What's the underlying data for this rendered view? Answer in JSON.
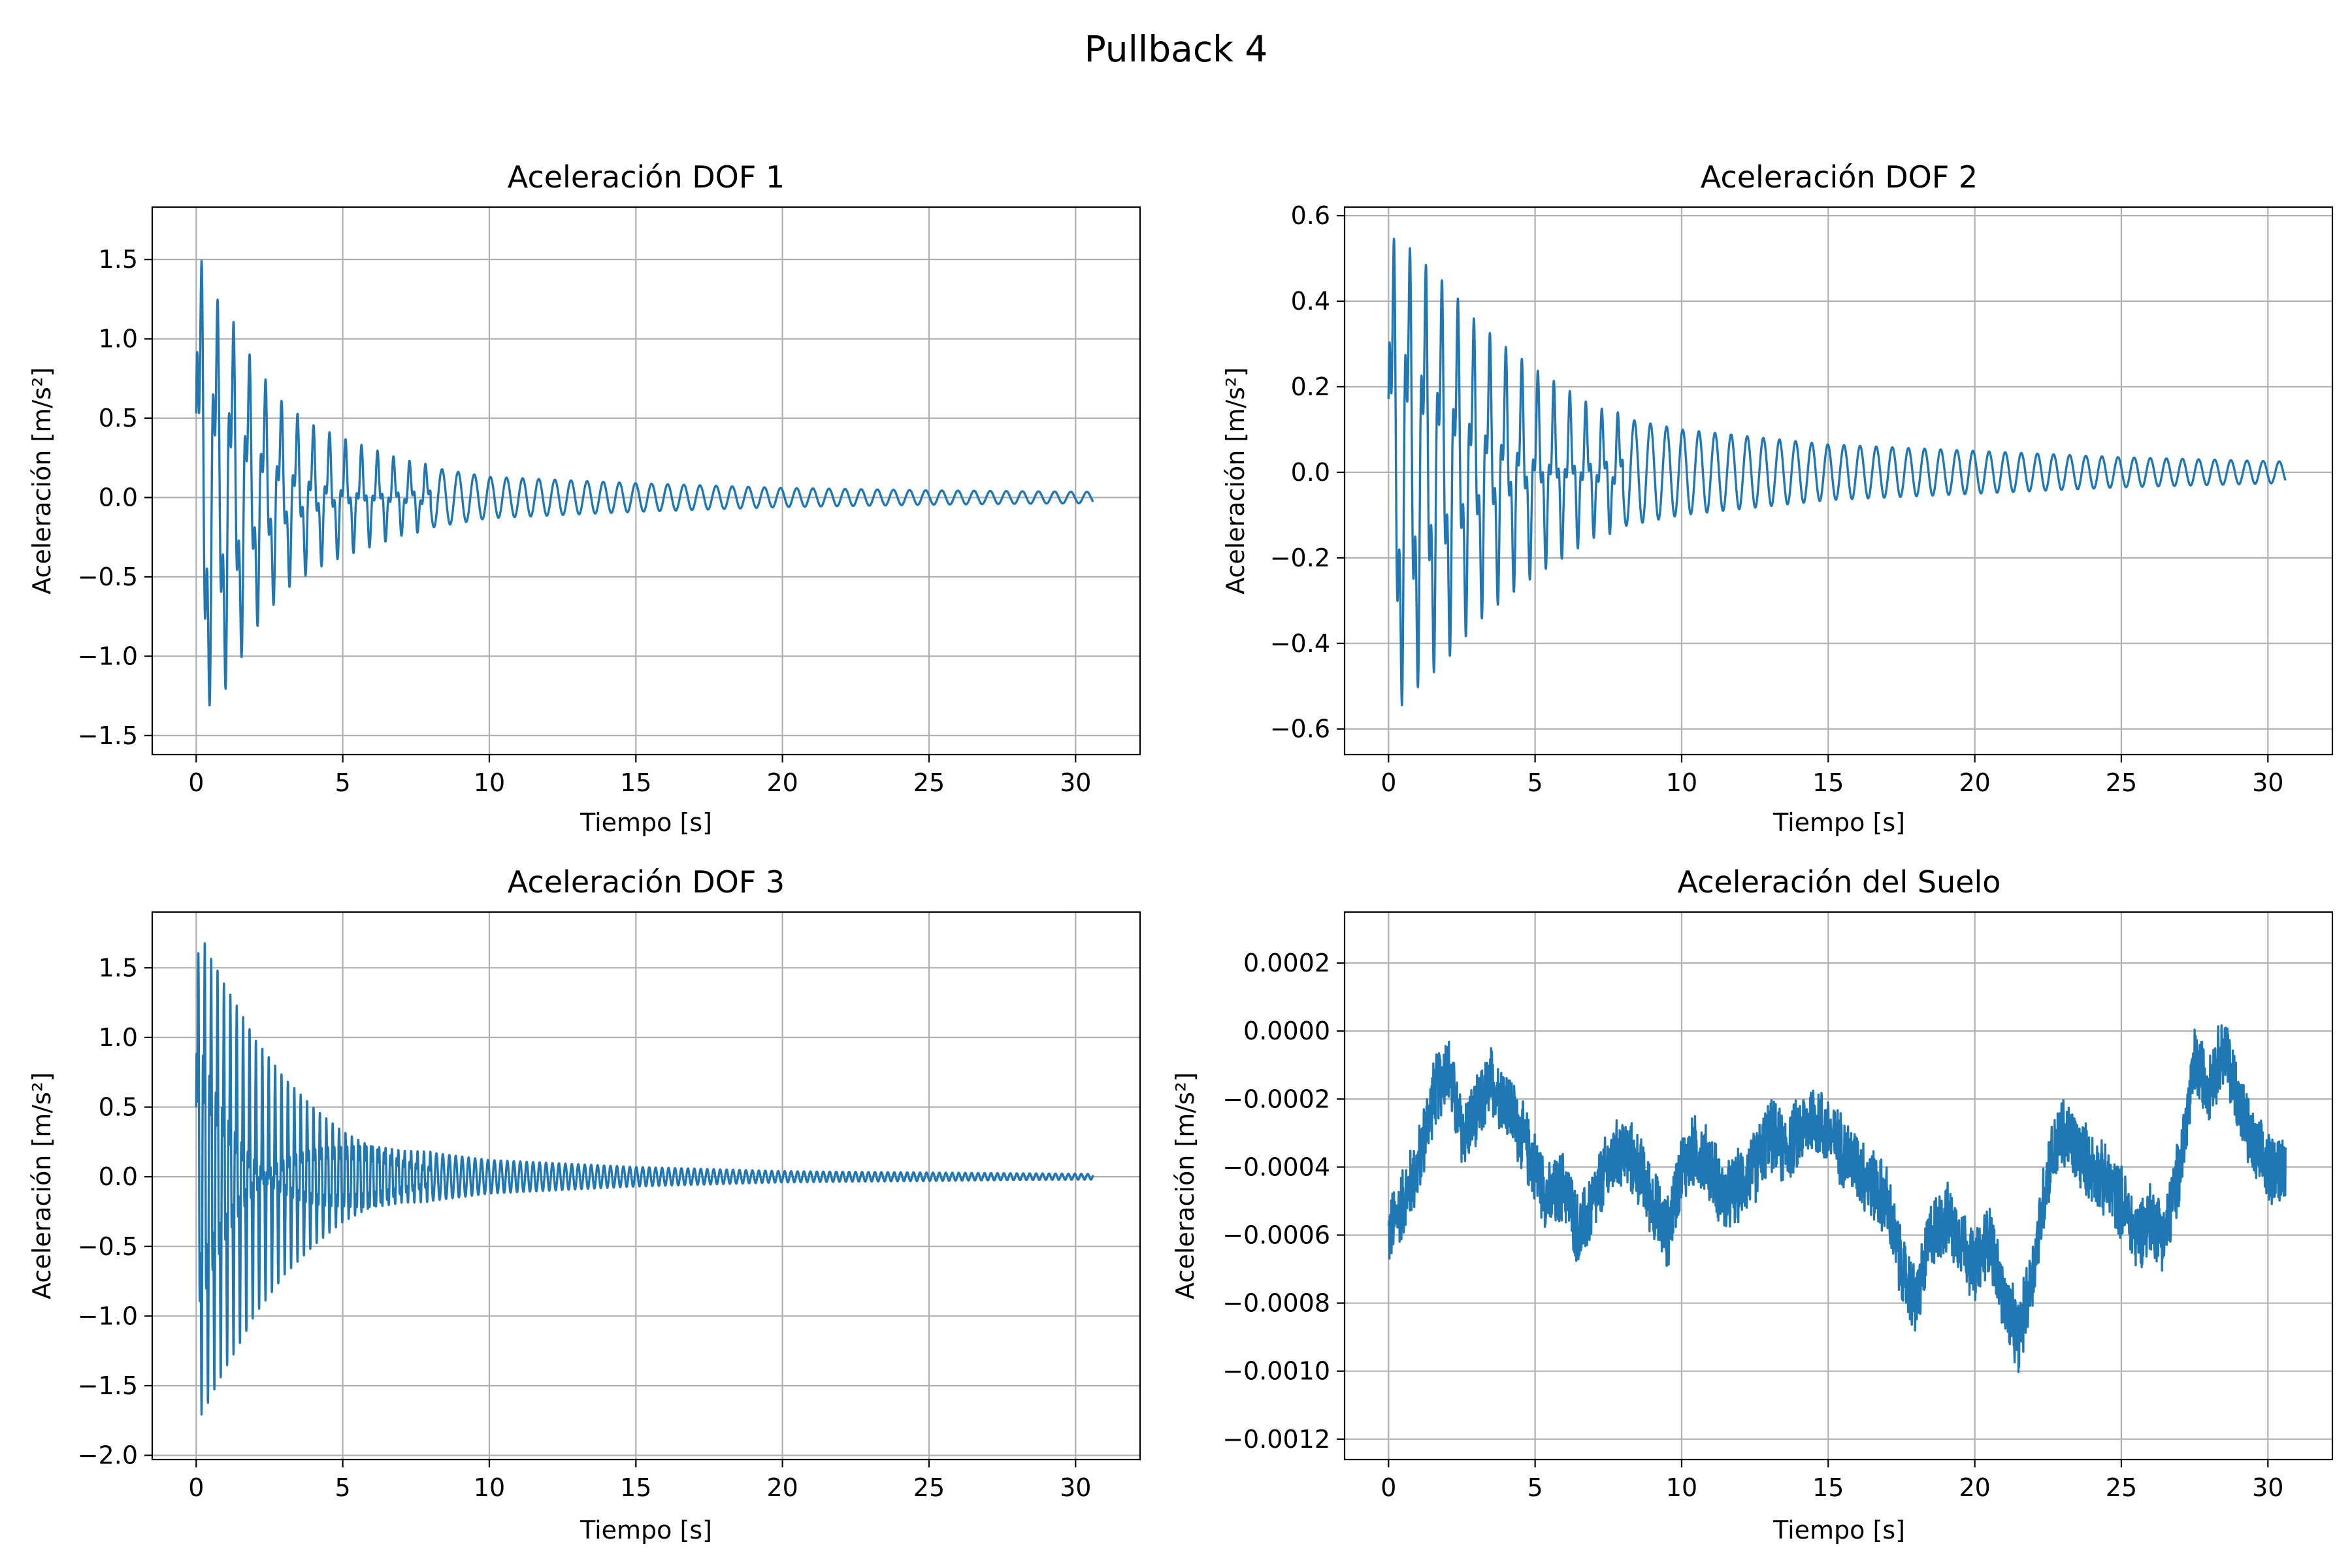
{
  "figure": {
    "suptitle": "Pullback 4",
    "line_color": "#1f77b4",
    "grid_color": "#b0b0b0"
  },
  "chart_data": [
    {
      "type": "line",
      "title": "Aceleración DOF 1",
      "xlabel": "Tiempo [s]",
      "ylabel": "Aceleración [m/s²]",
      "xlim": [
        -1.5,
        32.2
      ],
      "ylim": [
        -1.62,
        1.83
      ],
      "xticks": [
        0,
        5,
        10,
        15,
        20,
        25,
        30
      ],
      "xticklabels": [
        "0",
        "5",
        "10",
        "15",
        "20",
        "25",
        "30"
      ],
      "yticks": [
        -1.5,
        -1.0,
        -0.5,
        0.0,
        0.5,
        1.0,
        1.5
      ],
      "yticklabels": [
        "−1.5",
        "−1.0",
        "−0.5",
        "0.0",
        "0.5",
        "1.0",
        "1.5"
      ],
      "grid": true,
      "series": [
        {
          "envelope_t": [
            0,
            0.1,
            0.5,
            1,
            2,
            3,
            4,
            5,
            7,
            10,
            15,
            20,
            25,
            30.6
          ],
          "envelope_amp": [
            1.7,
            1.6,
            1.3,
            1.2,
            0.8,
            0.55,
            0.42,
            0.34,
            0.22,
            0.13,
            0.09,
            0.06,
            0.045,
            0.035
          ],
          "t_end": 30.6,
          "dominant_period_s": 0.55
        }
      ]
    },
    {
      "type": "line",
      "title": "Aceleración DOF 2",
      "xlabel": "Tiempo [s]",
      "ylabel": "Aceleración [m/s²]",
      "xlim": [
        -1.5,
        32.2
      ],
      "ylim": [
        -0.66,
        0.62
      ],
      "xticks": [
        0,
        5,
        10,
        15,
        20,
        25,
        30
      ],
      "xticklabels": [
        "0",
        "5",
        "10",
        "15",
        "20",
        "25",
        "30"
      ],
      "yticks": [
        -0.6,
        -0.4,
        -0.2,
        0.0,
        0.2,
        0.4,
        0.6
      ],
      "yticklabels": [
        "−0.6",
        "−0.4",
        "−0.2",
        "0.0",
        "0.2",
        "0.4",
        "0.6"
      ],
      "grid": true,
      "series": [
        {
          "envelope_t": [
            0,
            0.3,
            1,
            2,
            3,
            4,
            5,
            7,
            10,
            15,
            20,
            25,
            30.6
          ],
          "envelope_amp": [
            0.55,
            0.57,
            0.5,
            0.42,
            0.33,
            0.27,
            0.22,
            0.14,
            0.1,
            0.065,
            0.05,
            0.035,
            0.025
          ],
          "t_end": 30.6,
          "dominant_period_s": 0.55
        }
      ]
    },
    {
      "type": "line",
      "title": "Aceleración DOF 3",
      "xlabel": "Tiempo [s]",
      "ylabel": "Aceleración [m/s²]",
      "xlim": [
        -1.5,
        32.2
      ],
      "ylim": [
        -2.03,
        1.9
      ],
      "xticks": [
        0,
        5,
        10,
        15,
        20,
        25,
        30
      ],
      "xticklabels": [
        "0",
        "5",
        "10",
        "15",
        "20",
        "25",
        "30"
      ],
      "yticks": [
        -2.0,
        -1.5,
        -1.0,
        -0.5,
        0.0,
        0.5,
        1.0,
        1.5
      ],
      "yticklabels": [
        "−2.0",
        "−1.5",
        "−1.0",
        "−0.5",
        "0.0",
        "0.5",
        "1.0",
        "1.5"
      ],
      "grid": true,
      "series": [
        {
          "envelope_t": [
            0,
            0.2,
            0.5,
            1,
            2,
            3,
            4,
            5,
            7,
            10,
            15,
            20,
            25,
            30.6
          ],
          "envelope_amp": [
            1.6,
            1.75,
            1.55,
            1.3,
            0.9,
            0.65,
            0.48,
            0.35,
            0.2,
            0.12,
            0.07,
            0.04,
            0.03,
            0.02
          ],
          "t_end": 30.6,
          "dominant_period_s": 0.22
        }
      ]
    },
    {
      "type": "line",
      "title": "Aceleración del Suelo",
      "xlabel": "Tiempo [s]",
      "ylabel": "Aceleración [m/s²]",
      "xlim": [
        -1.5,
        32.2
      ],
      "ylim": [
        -0.00126,
        0.00035
      ],
      "xticks": [
        0,
        5,
        10,
        15,
        20,
        25,
        30
      ],
      "xticklabels": [
        "0",
        "5",
        "10",
        "15",
        "20",
        "25",
        "30"
      ],
      "yticks": [
        -0.0012,
        -0.001,
        -0.0008,
        -0.0006,
        -0.0004,
        -0.0002,
        0.0,
        0.0002
      ],
      "yticklabels": [
        "−0.0012",
        "−0.0010",
        "−0.0008",
        "−0.0006",
        "−0.0004",
        "−0.0002",
        "0.0000",
        "0.0002"
      ],
      "grid": true,
      "series": [
        {
          "trend_t": [
            0,
            0.5,
            1,
            1.5,
            2,
            2.5,
            3,
            3.5,
            4,
            4.5,
            5,
            5.5,
            6,
            6.5,
            7,
            7.5,
            8,
            8.5,
            9,
            9.5,
            10,
            10.5,
            11,
            11.5,
            12,
            12.5,
            13,
            13.5,
            14,
            14.5,
            15,
            15.5,
            16,
            16.5,
            17,
            17.5,
            18,
            18.5,
            19,
            19.5,
            20,
            20.5,
            21,
            21.5,
            22,
            22.5,
            23,
            23.5,
            24,
            24.5,
            25,
            25.5,
            26,
            26.5,
            27,
            27.5,
            28,
            28.5,
            29,
            29.5,
            30,
            30.6
          ],
          "trend_value": [
            -0.0006,
            -0.0005,
            -0.0004,
            -0.0002,
            -0.0001,
            -0.0003,
            -0.00025,
            -0.00015,
            -0.0002,
            -0.0003,
            -0.0004,
            -0.0005,
            -0.00045,
            -0.0006,
            -0.0005,
            -0.0004,
            -0.00035,
            -0.0004,
            -0.0005,
            -0.0006,
            -0.0004,
            -0.00035,
            -0.0004,
            -0.0005,
            -0.00045,
            -0.0004,
            -0.0003,
            -0.00035,
            -0.0003,
            -0.00025,
            -0.0003,
            -0.00035,
            -0.0004,
            -0.00045,
            -0.0005,
            -0.0007,
            -0.0008,
            -0.0006,
            -0.00055,
            -0.0006,
            -0.0007,
            -0.0006,
            -0.0008,
            -0.0009,
            -0.0007,
            -0.0004,
            -0.0003,
            -0.00035,
            -0.0004,
            -0.00045,
            -0.0005,
            -0.0006,
            -0.00055,
            -0.0006,
            -0.0004,
            -0.0001,
            -0.00015,
            -5e-05,
            -0.0002,
            -0.00035,
            -0.0004,
            -0.0004
          ],
          "noise_amp": 0.00012,
          "t_end": 30.6
        }
      ]
    }
  ]
}
